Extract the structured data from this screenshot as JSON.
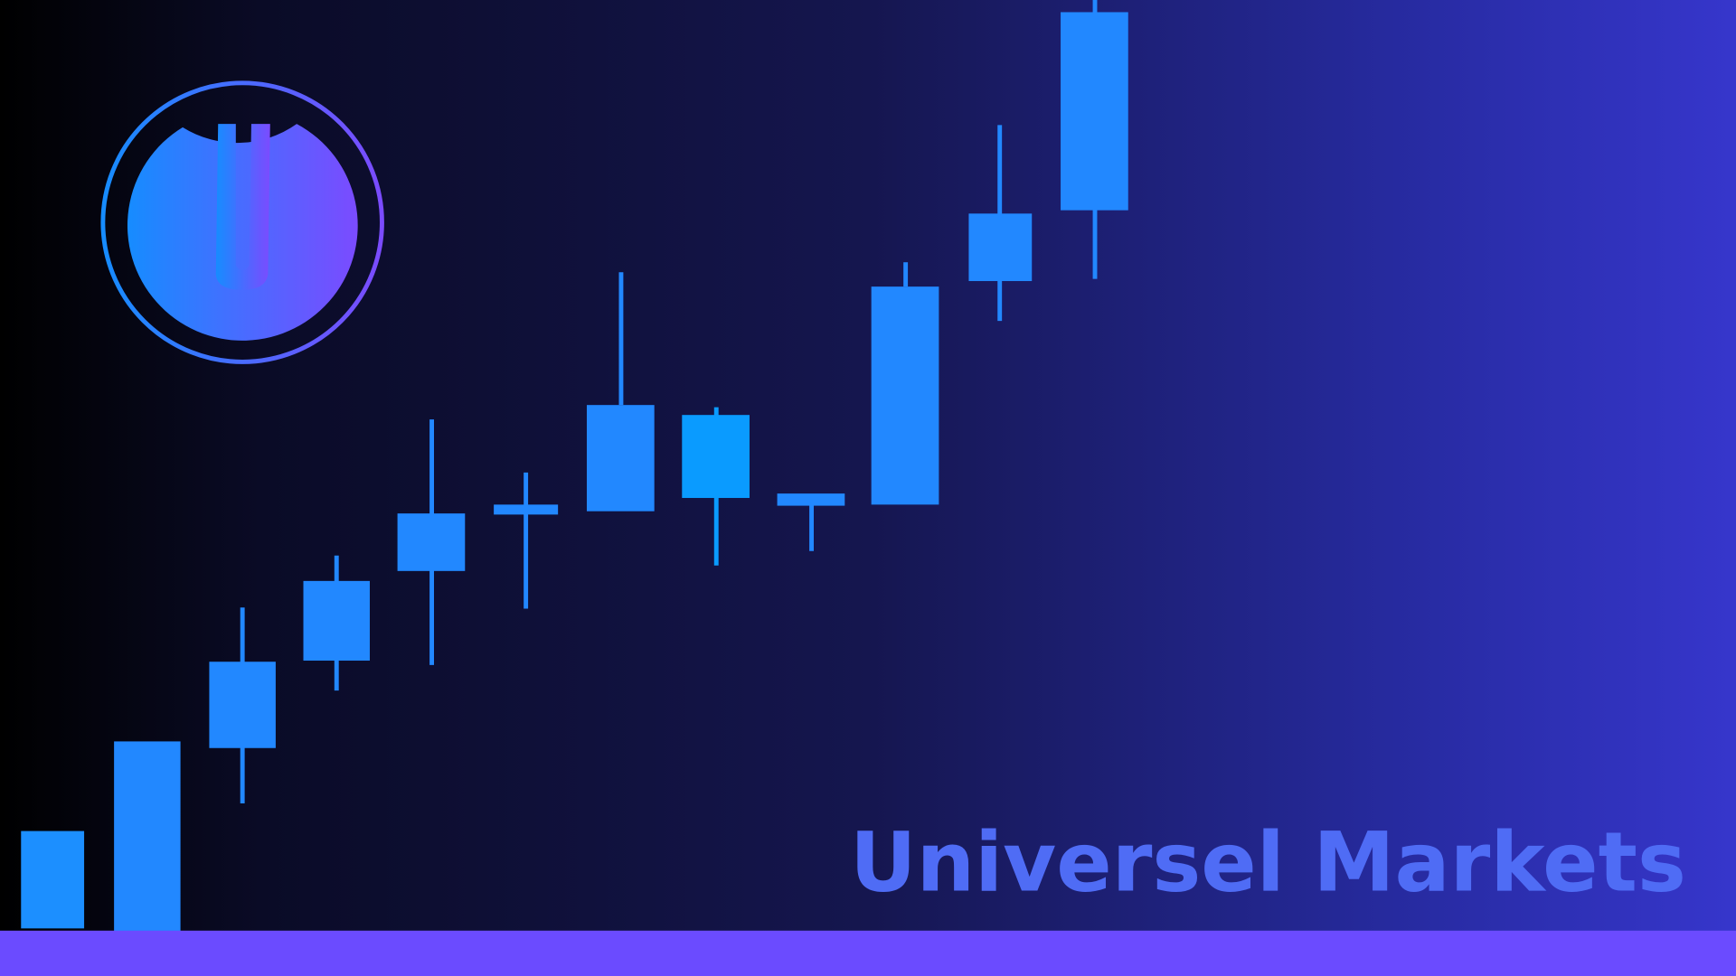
{
  "title": "Universel Markets"
}
